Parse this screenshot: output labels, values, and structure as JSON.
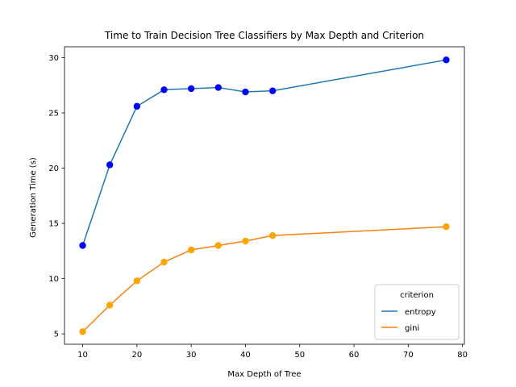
{
  "chart_data": {
    "type": "line",
    "title": "Time to Train Decision Tree Classifiers by Max Depth and Criterion",
    "xlabel": "Max Depth of Tree",
    "ylabel": "Generation Time (s)",
    "xlim": [
      6.65,
      80.35
    ],
    "ylim": [
      4.06,
      30.99
    ],
    "xticks": [
      10,
      20,
      30,
      40,
      50,
      60,
      70,
      80
    ],
    "yticks": [
      5,
      10,
      15,
      20,
      25,
      30
    ],
    "grid": false,
    "legend": {
      "title": "criterion",
      "placement": "lower-right"
    },
    "x": [
      10,
      15,
      20,
      25,
      30,
      35,
      40,
      45,
      77
    ],
    "series": [
      {
        "name": "entropy",
        "line_color": "#1f77b4",
        "marker_color": "#0000ff",
        "values": [
          13.0,
          20.3,
          25.6,
          27.1,
          27.2,
          27.3,
          26.9,
          27.0,
          29.8
        ]
      },
      {
        "name": "gini",
        "line_color": "#ff7f0e",
        "marker_color": "#ffa500",
        "values": [
          5.2,
          7.6,
          9.8,
          11.5,
          12.6,
          13.0,
          13.4,
          13.9,
          14.7
        ]
      }
    ]
  }
}
